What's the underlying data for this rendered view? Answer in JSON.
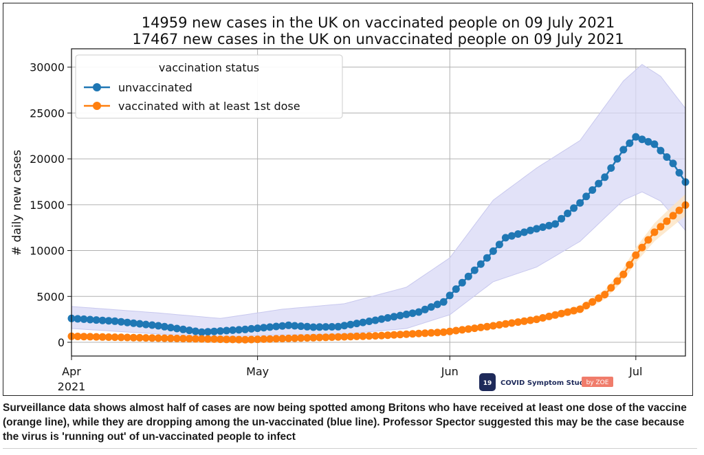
{
  "chart_data": {
    "type": "line",
    "title_lines": [
      "14959 new cases in the UK on vaccinated people on 09 July 2021",
      "17467 new cases in the UK on unvaccinated people on 09 July 2021"
    ],
    "xlabel": "",
    "ylabel": "# daily new cases",
    "x_ticks": [
      {
        "date": "2021-04-01",
        "label": "Apr",
        "sublabel": "2021"
      },
      {
        "date": "2021-05-01",
        "label": "May",
        "sublabel": ""
      },
      {
        "date": "2021-06-01",
        "label": "Jun",
        "sublabel": ""
      },
      {
        "date": "2021-07-01",
        "label": "Jul",
        "sublabel": ""
      }
    ],
    "y_ticks": [
      0,
      5000,
      10000,
      15000,
      20000,
      25000,
      30000
    ],
    "xlim": [
      "2021-04-01",
      "2021-07-09"
    ],
    "ylim": [
      -1500,
      32000
    ],
    "grid": true,
    "legend": {
      "title": "vaccination status",
      "placement": "top-left"
    },
    "series": [
      {
        "name": "unvaccinated",
        "color": "#1f77b4",
        "band_color": "#d8d8f5",
        "points": [
          [
            "2021-04-01",
            2600
          ],
          [
            "2021-04-08",
            2300
          ],
          [
            "2021-04-15",
            1800
          ],
          [
            "2021-04-22",
            1100
          ],
          [
            "2021-04-29",
            1400
          ],
          [
            "2021-05-06",
            1850
          ],
          [
            "2021-05-10",
            1650
          ],
          [
            "2021-05-14",
            1700
          ],
          [
            "2021-05-20",
            2400
          ],
          [
            "2021-05-27",
            3300
          ],
          [
            "2021-05-31",
            4400
          ],
          [
            "2021-06-03",
            6500
          ],
          [
            "2021-06-07",
            9200
          ],
          [
            "2021-06-10",
            11400
          ],
          [
            "2021-06-14",
            12200
          ],
          [
            "2021-06-18",
            12900
          ],
          [
            "2021-06-22",
            15200
          ],
          [
            "2021-06-26",
            18000
          ],
          [
            "2021-06-29",
            21000
          ],
          [
            "2021-07-01",
            22400
          ],
          [
            "2021-07-04",
            21600
          ],
          [
            "2021-07-07",
            19500
          ],
          [
            "2021-07-09",
            17467
          ]
        ],
        "upper": [
          [
            "2021-04-01",
            3900
          ],
          [
            "2021-04-15",
            3200
          ],
          [
            "2021-04-25",
            2600
          ],
          [
            "2021-05-05",
            3600
          ],
          [
            "2021-05-15",
            4200
          ],
          [
            "2021-05-25",
            6000
          ],
          [
            "2021-06-01",
            9200
          ],
          [
            "2021-06-08",
            15500
          ],
          [
            "2021-06-15",
            19000
          ],
          [
            "2021-06-22",
            22000
          ],
          [
            "2021-06-29",
            28500
          ],
          [
            "2021-07-02",
            30300
          ],
          [
            "2021-07-05",
            29000
          ],
          [
            "2021-07-09",
            25500
          ]
        ],
        "lower": [
          [
            "2021-04-01",
            1500
          ],
          [
            "2021-04-15",
            900
          ],
          [
            "2021-04-25",
            600
          ],
          [
            "2021-05-05",
            800
          ],
          [
            "2021-05-15",
            900
          ],
          [
            "2021-05-25",
            1500
          ],
          [
            "2021-06-01",
            3000
          ],
          [
            "2021-06-08",
            6600
          ],
          [
            "2021-06-15",
            8200
          ],
          [
            "2021-06-22",
            11000
          ],
          [
            "2021-06-29",
            15500
          ],
          [
            "2021-07-02",
            16400
          ],
          [
            "2021-07-05",
            15400
          ],
          [
            "2021-07-09",
            12200
          ]
        ]
      },
      {
        "name": "vaccinated with at least 1st dose",
        "color": "#ff7f0e",
        "band_color": "#fde3c2",
        "points": [
          [
            "2021-04-01",
            650
          ],
          [
            "2021-04-15",
            450
          ],
          [
            "2021-04-29",
            280
          ],
          [
            "2021-05-10",
            500
          ],
          [
            "2021-05-20",
            700
          ],
          [
            "2021-05-31",
            1100
          ],
          [
            "2021-06-07",
            1700
          ],
          [
            "2021-06-15",
            2500
          ],
          [
            "2021-06-22",
            3600
          ],
          [
            "2021-06-26",
            5200
          ],
          [
            "2021-06-29",
            7400
          ],
          [
            "2021-07-01",
            9500
          ],
          [
            "2021-07-04",
            12000
          ],
          [
            "2021-07-07",
            13800
          ],
          [
            "2021-07-09",
            14959
          ]
        ]
      }
    ]
  },
  "watermark": {
    "logo_text": "19",
    "brand": "COVID Symptom Study",
    "badge": "by ZOE"
  },
  "caption": "Surveillance data shows almost half of cases are now being spotted among Britons who have received at least one dose of the vaccine (orange line), while they are dropping among the un-vaccinated (blue line). Professor Spector suggested this may be the case because the virus is 'running out' of un-vaccinated people to infect"
}
